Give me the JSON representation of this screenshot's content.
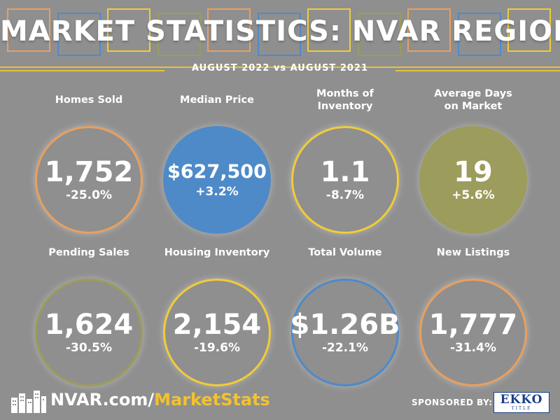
{
  "colors": {
    "background": "#8f8f8f",
    "orange": "#e8a060",
    "blue": "#4e8ac8",
    "yellow": "#f0cc38",
    "olive": "#9c9c5c",
    "rule": "#e6c23a",
    "accent_text": "#f2c230"
  },
  "header": {
    "title": "MARKET STATISTICS: NVAR REGION",
    "subtitle": "AUGUST 2022 vs AUGUST 2021",
    "deco_squares": [
      "orange",
      "blue",
      "yellow",
      "olive",
      "orange",
      "blue",
      "yellow",
      "olive",
      "orange",
      "blue",
      "yellow"
    ]
  },
  "stats": [
    {
      "label": "Homes Sold",
      "value": "1,752",
      "change": "-25.0%",
      "style": "ring",
      "color": "orange"
    },
    {
      "label": "Median Price",
      "value": "$627,500",
      "change": "+3.2%",
      "style": "filled",
      "color": "blue"
    },
    {
      "label": "Months of\nInventory",
      "value": "1.1",
      "change": "-8.7%",
      "style": "ring",
      "color": "yellow"
    },
    {
      "label": "Average Days\non Market",
      "value": "19",
      "change": "+5.6%",
      "style": "filled",
      "color": "olive"
    },
    {
      "label": "Pending Sales",
      "value": "1,624",
      "change": "-30.5%",
      "style": "ring",
      "color": "olive"
    },
    {
      "label": "Housing Inventory",
      "value": "2,154",
      "change": "-19.6%",
      "style": "ring",
      "color": "yellow"
    },
    {
      "label": "Total Volume",
      "value": "$1.26B",
      "change": "-22.1%",
      "style": "ring",
      "color": "blue"
    },
    {
      "label": "New Listings",
      "value": "1,777",
      "change": "-31.4%",
      "style": "ring",
      "color": "orange"
    }
  ],
  "footer": {
    "url_prefix": "NVAR.com/",
    "url_accent": "MarketStats",
    "sponsored_label": "SPONSORED BY:",
    "sponsor_logo_text": "EKKO",
    "sponsor_logo_sub": "TITLE",
    "icon": "skyline-icon"
  }
}
